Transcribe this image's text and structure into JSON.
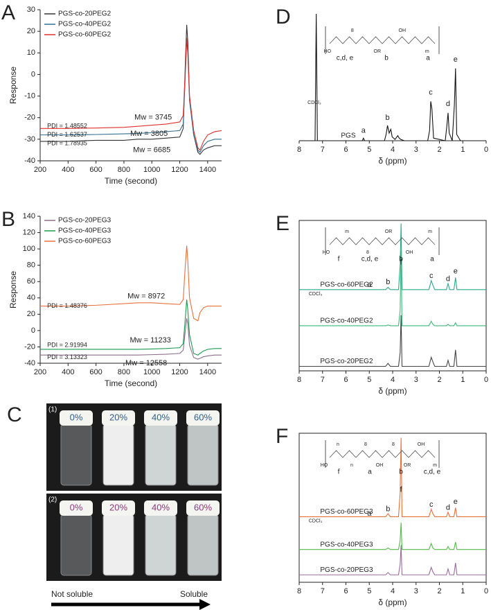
{
  "chart_data": [
    {
      "type": "line",
      "panel_label": "A",
      "xlabel": "Time (second)",
      "ylabel": "Response",
      "xlim": [
        200,
        1500
      ],
      "xticks": [
        200,
        400,
        600,
        800,
        1000,
        1200,
        1400
      ],
      "ylim": [
        -40,
        30
      ],
      "yticks": [
        -40,
        -30,
        -20,
        -10,
        0,
        10,
        20,
        30
      ],
      "legend": "upper left",
      "frame": false,
      "series": [
        {
          "name": "PGS-co-20PEG2",
          "color": "#333333",
          "x": [
            200,
            400,
            600,
            800,
            900,
            1000,
            1100,
            1200,
            1225,
            1240,
            1250,
            1258,
            1270,
            1300,
            1330,
            1345,
            1370,
            1400,
            1450,
            1500
          ],
          "values": [
            -31,
            -31,
            -30.5,
            -30.5,
            -30,
            -30,
            -29.5,
            -29,
            -25,
            5,
            23,
            15,
            -10,
            -28,
            -36,
            -37,
            -35,
            -34,
            -33,
            -33
          ]
        },
        {
          "name": "PGS-co-40PEG2",
          "color": "#2e6f8e",
          "x": [
            200,
            400,
            600,
            800,
            900,
            1000,
            1100,
            1200,
            1225,
            1240,
            1250,
            1258,
            1270,
            1300,
            1330,
            1345,
            1370,
            1400,
            1450,
            1500
          ],
          "values": [
            -28,
            -28,
            -27.8,
            -27.5,
            -27.3,
            -27,
            -26.5,
            -26,
            -23,
            0,
            16,
            10,
            -12,
            -28,
            -35,
            -36,
            -33,
            -31,
            -30,
            -30
          ]
        },
        {
          "name": "PGS-co-60PEG2",
          "color": "#e0302a",
          "x": [
            200,
            400,
            600,
            800,
            900,
            1000,
            1100,
            1200,
            1225,
            1240,
            1250,
            1258,
            1270,
            1300,
            1330,
            1345,
            1370,
            1400,
            1450,
            1500
          ],
          "values": [
            -25,
            -25,
            -24.8,
            -24.5,
            -24,
            -23.5,
            -23,
            -22,
            -19,
            2,
            17,
            10,
            -10,
            -26,
            -34,
            -35,
            -31,
            -28,
            -26.5,
            -26
          ]
        }
      ],
      "annotations": [
        {
          "text": "Mw = 3745",
          "x": 1010,
          "y": -20,
          "color": "#e8502a"
        },
        {
          "text": "Mw = 3805",
          "x": 980,
          "y": -27.5,
          "color": "#2e6f8e"
        },
        {
          "text": "Mw = 6685",
          "x": 1000,
          "y": -35,
          "color": "#555555"
        },
        {
          "text": "PDI = 1.48552",
          "x": 250,
          "y": -24,
          "color": "#e8502a"
        },
        {
          "text": "PDI = 1.62537",
          "x": 250,
          "y": -28,
          "color": "#2e6f8e"
        },
        {
          "text": "PDI = 1.78935",
          "x": 250,
          "y": -32,
          "color": "#555555"
        }
      ]
    },
    {
      "type": "line",
      "panel_label": "B",
      "xlabel": "Time (second)",
      "ylabel": "Response",
      "xlim": [
        200,
        1500
      ],
      "xticks": [
        200,
        400,
        600,
        800,
        1000,
        1200,
        1400
      ],
      "ylim": [
        -40,
        140
      ],
      "yticks": [
        -40,
        -20,
        0,
        20,
        40,
        60,
        80,
        100,
        120,
        140
      ],
      "legend": "upper left",
      "frame": false,
      "series": [
        {
          "name": "PGS-co-20PEG3",
          "color": "#8c6d8c",
          "x": [
            200,
            400,
            600,
            800,
            900,
            1000,
            1100,
            1200,
            1225,
            1240,
            1250,
            1258,
            1270,
            1300,
            1330,
            1345,
            1370,
            1400,
            1450,
            1500
          ],
          "values": [
            -30,
            -30,
            -30,
            -30,
            -30,
            -29.5,
            -29,
            -28,
            -24,
            0,
            15,
            8,
            -18,
            -33,
            -35,
            -34,
            -32,
            -31,
            -30,
            -30
          ]
        },
        {
          "name": "PGS-co-40PEG3",
          "color": "#1a9a50",
          "x": [
            200,
            400,
            600,
            800,
            900,
            1000,
            1100,
            1200,
            1225,
            1240,
            1250,
            1258,
            1270,
            1300,
            1330,
            1345,
            1370,
            1400,
            1450,
            1500
          ],
          "values": [
            -23,
            -23,
            -23,
            -23,
            -23,
            -22.5,
            -22,
            -21,
            -16,
            15,
            38,
            25,
            -5,
            -28,
            -30,
            -28,
            -25,
            -23,
            -22,
            -22
          ]
        },
        {
          "name": "PGS-co-60PEG3",
          "color": "#e8703a",
          "x": [
            200,
            400,
            600,
            800,
            900,
            1000,
            1100,
            1200,
            1225,
            1240,
            1250,
            1258,
            1270,
            1300,
            1330,
            1345,
            1370,
            1400,
            1450,
            1500
          ],
          "values": [
            30,
            30,
            31,
            33,
            34,
            34,
            33,
            32,
            38,
            80,
            104,
            85,
            40,
            15,
            12,
            22,
            28,
            30,
            30,
            30
          ]
        }
      ],
      "annotations": [
        {
          "text": "Mw = 8972",
          "x": 960,
          "y": 42,
          "color": "#e8703a"
        },
        {
          "text": "Mw = 11233",
          "x": 990,
          "y": -12,
          "color": "#1a9a50"
        },
        {
          "text": "Mw = 12558",
          "x": 960,
          "y": -40,
          "color": "#9a6b9a"
        },
        {
          "text": "PDI = 1.48376",
          "x": 250,
          "y": 30,
          "color": "#e8703a"
        },
        {
          "text": "PDI = 2.91994",
          "x": 250,
          "y": -18,
          "color": "#1a9a50"
        },
        {
          "text": "PDI = 3.13323",
          "x": 250,
          "y": -33,
          "color": "#9a6b9a"
        }
      ]
    },
    {
      "type": "line",
      "panel_label": "D",
      "xlabel": "δ (ppm)",
      "xlim": [
        8,
        0
      ],
      "xticks": [
        8,
        7,
        6,
        5,
        4,
        3,
        2,
        1,
        0
      ],
      "ylim": [
        0,
        100
      ],
      "frame": false,
      "series": [
        {
          "name": "PGS",
          "color": "#111111",
          "x": [
            8,
            7.32,
            7.27,
            7.22,
            5.5,
            5.3,
            5.25,
            5.2,
            4.35,
            4.28,
            4.22,
            4.15,
            4.08,
            4.02,
            3.9,
            3.78,
            3.72,
            3.65,
            3.5,
            2.5,
            2.42,
            2.37,
            2.32,
            2.25,
            1.75,
            1.68,
            1.63,
            1.58,
            1.45,
            1.36,
            1.31,
            1.26,
            1.1,
            0
          ],
          "values": [
            0,
            0,
            100,
            0,
            0,
            0,
            2,
            0,
            0,
            5,
            12,
            6,
            9,
            3,
            1,
            4,
            2,
            1,
            0,
            0,
            8,
            31,
            25,
            2,
            0,
            12,
            22,
            6,
            0,
            28,
            57,
            5,
            0,
            0
          ]
        }
      ],
      "series_labels": true,
      "structure": {
        "text": [
          "HO",
          "8",
          "OR",
          "OH",
          "m"
        ],
        "marks": [
          "c,d, e",
          "b",
          "a"
        ]
      },
      "annotations": [
        {
          "text": "CDCl₃",
          "x": 7.35,
          "y": 30,
          "color": "#e0302a"
        },
        {
          "text": "a",
          "x": 5.25,
          "y": 8,
          "color": "#e0302a"
        },
        {
          "text": "b",
          "x": 4.22,
          "y": 18,
          "color": "#e0302a"
        },
        {
          "text": "c",
          "x": 2.37,
          "y": 38,
          "color": "#e0302a"
        },
        {
          "text": "d",
          "x": 1.63,
          "y": 29,
          "color": "#e0302a"
        },
        {
          "text": "e",
          "x": 1.31,
          "y": 64,
          "color": "#e0302a"
        }
      ]
    },
    {
      "type": "line",
      "panel_label": "E",
      "xlabel": "δ (ppm)",
      "xlim": [
        8,
        0
      ],
      "xticks": [
        8,
        7,
        6,
        5,
        4,
        3,
        2,
        1,
        0
      ],
      "ylim": [
        0,
        100
      ],
      "frame": true,
      "series": [
        {
          "name": "PGS-co-60PEG2",
          "color": "#2aa88a",
          "x": [
            8,
            4.3,
            4.2,
            4.1,
            3.75,
            3.68,
            3.64,
            3.6,
            2.45,
            2.35,
            2.28,
            2.2,
            1.7,
            1.63,
            1.56,
            1.38,
            1.31,
            1.25,
            0
          ],
          "values": [
            54,
            54,
            55.5,
            54,
            54,
            70,
            98,
            54,
            54,
            60,
            57,
            54,
            54,
            58,
            54,
            54,
            62,
            54,
            54
          ]
        },
        {
          "name": "PGS-co-40PEG2",
          "color": "#3cb878",
          "x": [
            8,
            4.3,
            4.2,
            4.1,
            3.75,
            3.68,
            3.64,
            3.6,
            2.45,
            2.35,
            2.28,
            2.2,
            1.7,
            1.63,
            1.56,
            1.38,
            1.31,
            1.25,
            0
          ],
          "values": [
            30,
            30,
            30.5,
            30,
            30,
            40,
            80,
            30,
            30,
            33,
            31,
            30,
            30,
            31,
            30,
            30,
            32,
            30,
            30
          ]
        },
        {
          "name": "PGS-co-20PEG2",
          "color": "#444444",
          "x": [
            8,
            4.3,
            4.2,
            4.1,
            3.75,
            3.68,
            3.64,
            3.6,
            2.45,
            2.35,
            2.28,
            2.2,
            1.7,
            1.63,
            1.56,
            1.38,
            1.31,
            1.25,
            0
          ],
          "values": [
            3,
            3,
            5,
            3,
            3,
            12,
            37,
            3,
            3,
            9,
            6,
            3,
            3,
            7,
            3,
            3,
            14,
            3,
            3
          ]
        }
      ],
      "series_labels": true,
      "structure": {
        "text": [
          "HO",
          "m",
          "8",
          "OR",
          "OH",
          "m"
        ],
        "marks": [
          "f",
          "c,d, e",
          "b",
          "a"
        ]
      },
      "annotations": [
        {
          "text": "CDCl₃",
          "x": 7.3,
          "y": 51,
          "color": "#e0302a"
        },
        {
          "text": "a",
          "x": 5.0,
          "y": 57,
          "color": "#e0302a"
        },
        {
          "text": "b",
          "x": 4.2,
          "y": 59,
          "color": "#e0302a"
        },
        {
          "text": "f",
          "x": 3.64,
          "y": 72,
          "color": "#e0302a"
        },
        {
          "text": "c",
          "x": 2.35,
          "y": 63,
          "color": "#e0302a"
        },
        {
          "text": "d",
          "x": 1.63,
          "y": 61,
          "color": "#e0302a"
        },
        {
          "text": "e",
          "x": 1.31,
          "y": 66,
          "color": "#e0302a"
        }
      ]
    },
    {
      "type": "line",
      "panel_label": "F",
      "xlabel": "δ (ppm)",
      "xlim": [
        8,
        0
      ],
      "xticks": [
        8,
        7,
        6,
        5,
        4,
        3,
        2,
        1,
        0
      ],
      "ylim": [
        0,
        100
      ],
      "frame": true,
      "series": [
        {
          "name": "PGS-co-60PEG3",
          "color": "#e8703a",
          "x": [
            8,
            4.3,
            4.2,
            4.1,
            3.75,
            3.68,
            3.64,
            3.6,
            2.45,
            2.35,
            2.28,
            2.2,
            1.7,
            1.63,
            1.56,
            1.38,
            1.31,
            1.25,
            0
          ],
          "values": [
            44,
            44,
            46,
            44,
            44,
            60,
            97,
            44,
            44,
            49,
            46,
            44,
            44,
            47,
            44,
            44,
            50,
            44,
            44
          ]
        },
        {
          "name": "PGS-co-40PEG3",
          "color": "#55b848",
          "x": [
            8,
            4.3,
            4.2,
            4.1,
            3.75,
            3.68,
            3.64,
            3.6,
            2.45,
            2.35,
            2.28,
            2.2,
            1.7,
            1.63,
            1.56,
            1.38,
            1.31,
            1.25,
            0
          ],
          "values": [
            22,
            22,
            23,
            22,
            22,
            28,
            40,
            22,
            22,
            26,
            23,
            22,
            22,
            24,
            22,
            22,
            27,
            22,
            22
          ]
        },
        {
          "name": "PGS-co-20PEG3",
          "color": "#9a6b9a",
          "x": [
            8,
            4.3,
            4.2,
            4.1,
            3.75,
            3.68,
            3.64,
            3.6,
            2.45,
            2.35,
            2.28,
            2.2,
            1.7,
            1.63,
            1.56,
            1.38,
            1.31,
            1.25,
            0
          ],
          "values": [
            5,
            5,
            6.5,
            5,
            5,
            12,
            25,
            5,
            5,
            10,
            7,
            5,
            5,
            9,
            5,
            5,
            13,
            5,
            5
          ]
        }
      ],
      "series_labels": true,
      "structure": {
        "text": [
          "HO",
          "n",
          "n",
          "8",
          "OH",
          "8",
          "OR",
          "OH",
          "m"
        ],
        "marks": [
          "f",
          "a",
          "b",
          "c,d, e"
        ]
      },
      "annotations": [
        {
          "text": "CDCl₃",
          "x": 7.3,
          "y": 41,
          "color": "#e0302a"
        },
        {
          "text": "a",
          "x": 5.0,
          "y": 46,
          "color": "#e0302a"
        },
        {
          "text": "b",
          "x": 4.2,
          "y": 49,
          "color": "#e0302a"
        },
        {
          "text": "f",
          "x": 3.64,
          "y": 62,
          "color": "#e0302a"
        },
        {
          "text": "c",
          "x": 2.35,
          "y": 52,
          "color": "#e0302a"
        },
        {
          "text": "d",
          "x": 1.63,
          "y": 50,
          "color": "#e0302a"
        },
        {
          "text": "e",
          "x": 1.31,
          "y": 54,
          "color": "#e0302a"
        }
      ]
    }
  ],
  "photo_panel": {
    "panel_label": "C",
    "rows": [
      {
        "label": "(1)",
        "vials": [
          "0%",
          "20%",
          "40%",
          "60%"
        ]
      },
      {
        "label": "(2)",
        "vials": [
          "0%",
          "20%",
          "40%",
          "60%"
        ]
      }
    ],
    "arrow_left": "Not soluble",
    "arrow_right": "Soluble"
  }
}
